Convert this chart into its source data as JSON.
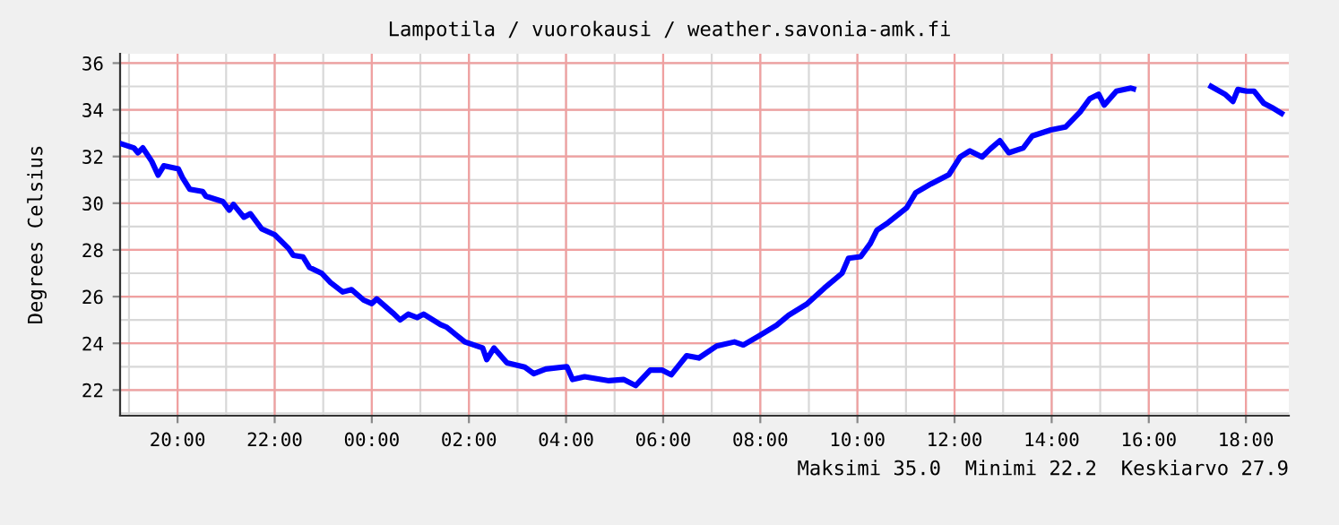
{
  "chart_data": {
    "type": "line",
    "title": "Lampotila / vuorokausi / weather.savonia-amk.fi",
    "ylabel": "Degrees Celsius",
    "annotations": [
      "Maksimi 35.0  Minimi 22.2  Keskiarvo 27.9"
    ],
    "grid": true,
    "marker": "none",
    "line_style": "solid",
    "xlim": [
      "2000-01-01T18:49",
      "2000-01-02T18:53"
    ],
    "ylim": [
      20.9,
      36.4
    ],
    "xticks": [
      {
        "value": "2000-01-01T20:00",
        "label": "20:00"
      },
      {
        "value": "2000-01-01T22:00",
        "label": "22:00"
      },
      {
        "value": "2000-01-02T00:00",
        "label": "00:00"
      },
      {
        "value": "2000-01-02T02:00",
        "label": "02:00"
      },
      {
        "value": "2000-01-02T04:00",
        "label": "04:00"
      },
      {
        "value": "2000-01-02T06:00",
        "label": "06:00"
      },
      {
        "value": "2000-01-02T08:00",
        "label": "08:00"
      },
      {
        "value": "2000-01-02T10:00",
        "label": "10:00"
      },
      {
        "value": "2000-01-02T12:00",
        "label": "12:00"
      },
      {
        "value": "2000-01-02T14:00",
        "label": "14:00"
      },
      {
        "value": "2000-01-02T16:00",
        "label": "16:00"
      },
      {
        "value": "2000-01-02T18:00",
        "label": "18:00"
      }
    ],
    "yticks": [
      22,
      24,
      26,
      28,
      30,
      32,
      34,
      36
    ],
    "series": [
      {
        "color": "#0000ff",
        "x": [
          "2000-01-01T18:50",
          "2000-01-01T19:06",
          "2000-01-01T19:11",
          "2000-01-01T19:17",
          "2000-01-01T19:28",
          "2000-01-01T19:36",
          "2000-01-01T19:43",
          "2000-01-01T20:01",
          "2000-01-01T20:06",
          "2000-01-01T20:15",
          "2000-01-01T20:31",
          "2000-01-01T20:35",
          "2000-01-01T20:56",
          "2000-01-01T21:04",
          "2000-01-01T21:09",
          "2000-01-01T21:22",
          "2000-01-01T21:30",
          "2000-01-01T21:44",
          "2000-01-01T22:00",
          "2000-01-01T22:17",
          "2000-01-01T22:23",
          "2000-01-01T22:35",
          "2000-01-01T22:43",
          "2000-01-01T22:58",
          "2000-01-01T23:09",
          "2000-01-01T23:24",
          "2000-01-01T23:35",
          "2000-01-01T23:50",
          "2000-01-02T00:00",
          "2000-01-02T00:06",
          "2000-01-02T00:26",
          "2000-01-02T00:35",
          "2000-01-02T00:45",
          "2000-01-02T00:56",
          "2000-01-02T01:04",
          "2000-01-02T01:25",
          "2000-01-02T01:32",
          "2000-01-02T01:55",
          "2000-01-02T02:17",
          "2000-01-02T02:22",
          "2000-01-02T02:31",
          "2000-01-02T02:47",
          "2000-01-02T03:09",
          "2000-01-02T03:20",
          "2000-01-02T03:35",
          "2000-01-02T04:01",
          "2000-01-02T04:08",
          "2000-01-02T04:23",
          "2000-01-02T04:53",
          "2000-01-02T05:11",
          "2000-01-02T05:26",
          "2000-01-02T05:44",
          "2000-01-02T05:59",
          "2000-01-02T06:10",
          "2000-01-02T06:29",
          "2000-01-02T06:44",
          "2000-01-02T07:06",
          "2000-01-02T07:28",
          "2000-01-02T07:39",
          "2000-01-02T07:58",
          "2000-01-02T08:20",
          "2000-01-02T08:35",
          "2000-01-02T08:57",
          "2000-01-02T09:19",
          "2000-01-02T09:41",
          "2000-01-02T09:49",
          "2000-01-02T10:04",
          "2000-01-02T10:16",
          "2000-01-02T10:24",
          "2000-01-02T10:38",
          "2000-01-02T11:01",
          "2000-01-02T11:12",
          "2000-01-02T11:31",
          "2000-01-02T11:53",
          "2000-01-02T12:07",
          "2000-01-02T12:19",
          "2000-01-02T12:34",
          "2000-01-02T12:44",
          "2000-01-02T12:56",
          "2000-01-02T13:07",
          "2000-01-02T13:25",
          "2000-01-02T13:36",
          "2000-01-02T13:59",
          "2000-01-02T14:17",
          "2000-01-02T14:35",
          "2000-01-02T14:47",
          "2000-01-02T14:58",
          "2000-01-02T15:05",
          "2000-01-02T15:20",
          "2000-01-02T15:38",
          "2000-01-02T15:41",
          "2000-01-02T16:30",
          "2000-01-02T17:17",
          "2000-01-02T17:34",
          "2000-01-02T17:44",
          "2000-01-02T17:50",
          "2000-01-02T18:01",
          "2000-01-02T18:10",
          "2000-01-02T18:22",
          "2000-01-02T18:32",
          "2000-01-02T18:44"
        ],
        "values": [
          32.55,
          32.37,
          32.16,
          32.37,
          31.8,
          31.2,
          31.6,
          31.47,
          31.1,
          30.6,
          30.5,
          30.3,
          30.07,
          29.7,
          29.95,
          29.4,
          29.55,
          28.9,
          28.65,
          28.07,
          27.77,
          27.7,
          27.25,
          27.0,
          26.6,
          26.2,
          26.3,
          25.85,
          25.7,
          25.9,
          25.3,
          25.0,
          25.25,
          25.1,
          25.25,
          24.8,
          24.7,
          24.06,
          23.8,
          23.3,
          23.8,
          23.16,
          22.98,
          22.7,
          22.9,
          23.0,
          22.45,
          22.57,
          22.4,
          22.45,
          22.19,
          22.85,
          22.85,
          22.65,
          23.47,
          23.37,
          23.88,
          24.06,
          23.93,
          24.31,
          24.77,
          25.2,
          25.67,
          26.36,
          27.0,
          27.64,
          27.71,
          28.28,
          28.84,
          29.17,
          29.81,
          30.45,
          30.83,
          31.22,
          31.98,
          32.24,
          31.98,
          32.32,
          32.68,
          32.16,
          32.37,
          32.88,
          33.14,
          33.26,
          33.9,
          34.47,
          34.67,
          34.2,
          34.8,
          34.93,
          34.9,
          null,
          35.0,
          34.67,
          34.36,
          34.87,
          34.8,
          34.8,
          34.28,
          34.1,
          33.85
        ]
      }
    ]
  }
}
